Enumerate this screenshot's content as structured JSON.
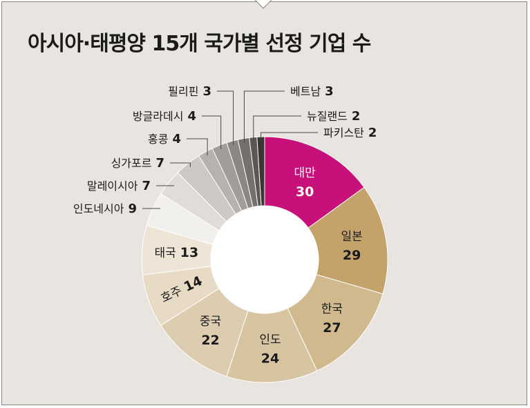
{
  "title": "아시아·태평양 15개 국가별 선정 기업 수",
  "chart_data": {
    "type": "pie",
    "variant": "donut",
    "slices": [
      {
        "label": "대만",
        "value": 30,
        "color": "#c8107a",
        "text_color": "#ffffff",
        "placement": "inside"
      },
      {
        "label": "일본",
        "value": 29,
        "color": "#c4a36a",
        "text_color": "#1a1a1a",
        "placement": "inside"
      },
      {
        "label": "한국",
        "value": 27,
        "color": "#cfb98d",
        "text_color": "#1a1a1a",
        "placement": "inside"
      },
      {
        "label": "인도",
        "value": 24,
        "color": "#d7c4a0",
        "text_color": "#1a1a1a",
        "placement": "inside"
      },
      {
        "label": "중국",
        "value": 22,
        "color": "#ddcdb0",
        "text_color": "#1a1a1a",
        "placement": "inside"
      },
      {
        "label": "호주",
        "value": 14,
        "color": "#e7dbc6",
        "text_color": "#1a1a1a",
        "placement": "inside-rotated"
      },
      {
        "label": "태국",
        "value": 13,
        "color": "#eee5d6",
        "text_color": "#1a1a1a",
        "placement": "inside-inline"
      },
      {
        "label": "인도네시아",
        "value": 9,
        "color": "#f2f0ed",
        "text_color": "#1a1a1a",
        "placement": "outside"
      },
      {
        "label": "말레이시아",
        "value": 7,
        "color": "#dfdcd9",
        "text_color": "#1a1a1a",
        "placement": "outside"
      },
      {
        "label": "싱가포르",
        "value": 7,
        "color": "#cdc9c5",
        "text_color": "#1a1a1a",
        "placement": "outside"
      },
      {
        "label": "홍콩",
        "value": 4,
        "color": "#b7b2ad",
        "text_color": "#1a1a1a",
        "placement": "outside"
      },
      {
        "label": "방글라데시",
        "value": 4,
        "color": "#a29d98",
        "text_color": "#1a1a1a",
        "placement": "outside"
      },
      {
        "label": "필리핀",
        "value": 3,
        "color": "#8c8782",
        "text_color": "#1a1a1a",
        "placement": "outside"
      },
      {
        "label": "베트남",
        "value": 3,
        "color": "#75706b",
        "text_color": "#1a1a1a",
        "placement": "outside"
      },
      {
        "label": "뉴질랜드",
        "value": 2,
        "color": "#5b5753",
        "text_color": "#1a1a1a",
        "placement": "outside"
      },
      {
        "label": "파키스탄",
        "value": 2,
        "color": "#3a3633",
        "text_color": "#1a1a1a",
        "placement": "outside"
      }
    ],
    "legend": "none"
  }
}
